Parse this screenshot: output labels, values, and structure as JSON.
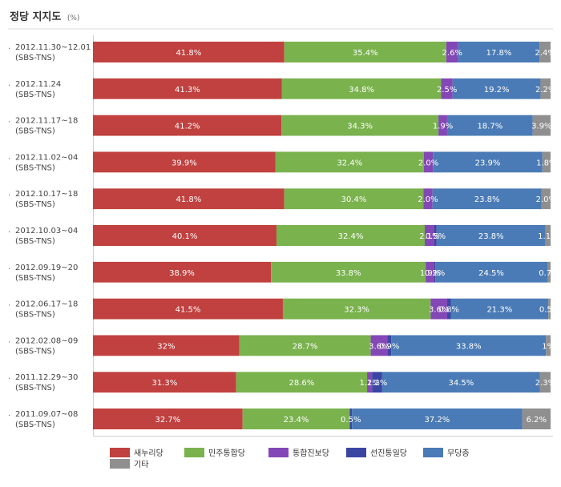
{
  "title": "정당 지지도",
  "unit": "(%)",
  "legend": [
    {
      "name": "새누리당",
      "color": "#c0413f"
    },
    {
      "name": "민주통합당",
      "color": "#7ab24e"
    },
    {
      "name": "통합진보당",
      "color": "#8348b6"
    },
    {
      "name": "선진통일당",
      "color": "#3b46a3"
    },
    {
      "name": "무당층",
      "color": "#4a7bb6"
    },
    {
      "name": "기타",
      "color": "#8f8f8f"
    }
  ],
  "chart_data": {
    "type": "bar",
    "stacked": true,
    "orientation": "horizontal",
    "xlim": [
      0,
      100
    ],
    "legend_position": "bottom",
    "categories": [
      {
        "date": "2012.11.30~12.01",
        "source": "(SBS-TNS)"
      },
      {
        "date": "2012.11.24",
        "source": "(SBS-TNS)"
      },
      {
        "date": "2012.11.17~18",
        "source": "(SBS-TNS)"
      },
      {
        "date": "2012.11.02~04",
        "source": "(SBS-TNS)"
      },
      {
        "date": "2012.10.17~18",
        "source": "(SBS-TNS)"
      },
      {
        "date": "2012.10.03~04",
        "source": "(SBS-TNS)"
      },
      {
        "date": "2012.09.19~20",
        "source": "(SBS-TNS)"
      },
      {
        "date": "2012.06.17~18",
        "source": "(SBS-TNS)"
      },
      {
        "date": "2012.02.08~09",
        "source": "(SBS-TNS)"
      },
      {
        "date": "2011.12.29~30",
        "source": "(SBS-TNS)"
      },
      {
        "date": "2011.09.07~08",
        "source": "(SBS-TNS)"
      }
    ],
    "series": [
      {
        "name": "새누리당",
        "values": [
          41.8,
          41.3,
          41.2,
          39.9,
          41.8,
          40.1,
          38.9,
          41.5,
          32,
          31.3,
          32.7
        ],
        "labels": [
          "41.8%",
          "41.3%",
          "41.2%",
          "39.9%",
          "41.8%",
          "40.1%",
          "38.9%",
          "41.5%",
          "32%",
          "31.3%",
          "32.7%"
        ]
      },
      {
        "name": "민주통합당",
        "values": [
          35.4,
          34.8,
          34.3,
          32.4,
          30.4,
          32.4,
          33.8,
          32.3,
          28.7,
          28.6,
          23.4
        ],
        "labels": [
          "35.4%",
          "34.8%",
          "34.3%",
          "32.4%",
          "30.4%",
          "32.4%",
          "33.8%",
          "32.3%",
          "28.7%",
          "28.6%",
          "23.4%"
        ]
      },
      {
        "name": "통합진보당",
        "values": [
          2.6,
          2.5,
          1.9,
          2.0,
          2.0,
          2.1,
          1.9,
          3.6,
          3.6,
          1.1,
          0
        ],
        "labels": [
          "2.6%",
          "2.5%",
          "1.9%",
          "2.0%",
          "2.0%",
          "2.1%",
          "1.9%",
          "3.6%",
          "3.6%",
          "1.1%",
          ""
        ]
      },
      {
        "name": "선진통일당",
        "values": [
          0,
          0,
          0,
          0,
          0,
          0.5,
          0.2,
          0.8,
          0.9,
          2.2,
          0.5
        ],
        "labels": [
          "",
          "",
          "",
          "",
          "",
          "0.5%",
          "0.2%",
          "0.8%",
          "0.9%",
          "2.2%",
          "0.5%"
        ]
      },
      {
        "name": "무당층",
        "values": [
          17.8,
          19.2,
          18.7,
          23.9,
          23.8,
          23.8,
          24.5,
          21.3,
          33.8,
          34.5,
          37.2
        ],
        "labels": [
          "17.8%",
          "19.2%",
          "18.7%",
          "23.9%",
          "23.8%",
          "23.8%",
          "24.5%",
          "21.3%",
          "33.8%",
          "34.5%",
          "37.2%"
        ]
      },
      {
        "name": "기타",
        "values": [
          2.4,
          2.2,
          3.9,
          1.8,
          2.0,
          1.1,
          0.7,
          0.5,
          1,
          2.3,
          6.2
        ],
        "labels": [
          "2.4%",
          "2.2%",
          "3.9%",
          "1.8%",
          "2.0%",
          "1.1%",
          "0.7%",
          "0.5%",
          "1%",
          "2.3%",
          "6.2%"
        ]
      }
    ]
  }
}
